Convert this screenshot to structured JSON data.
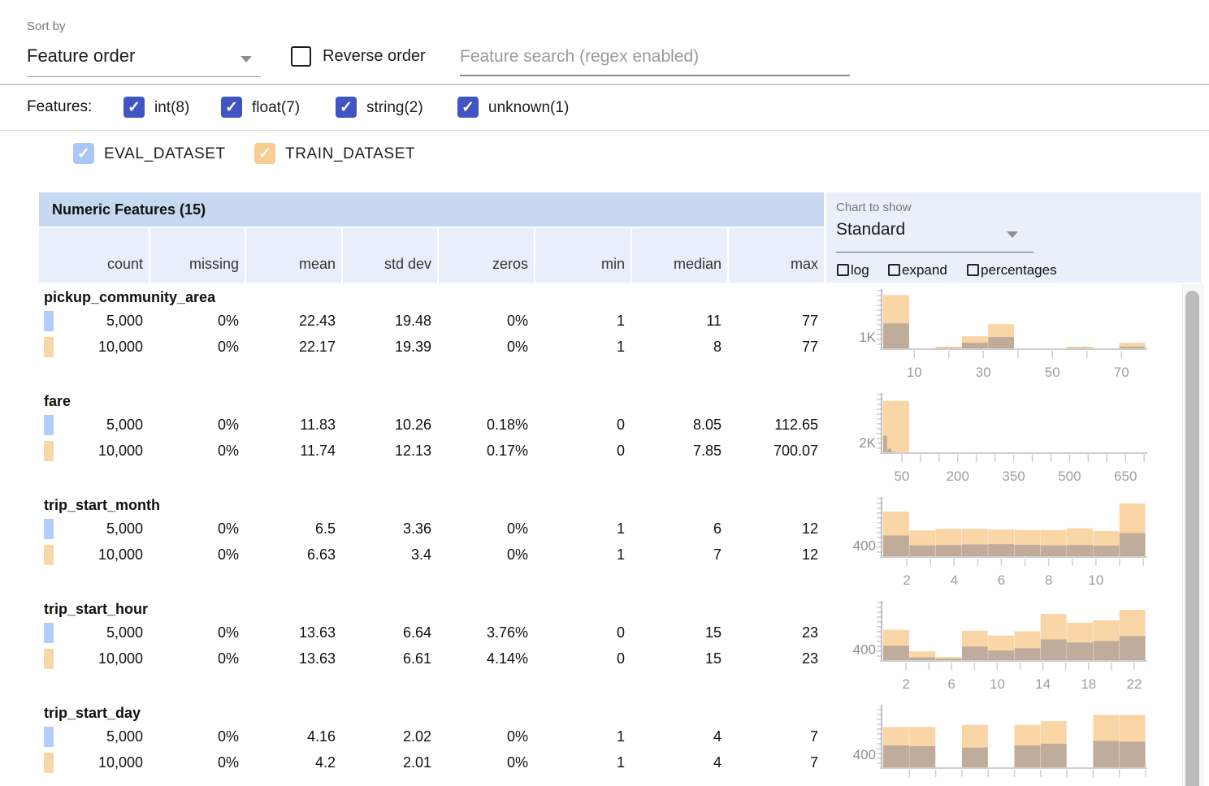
{
  "toolbar": {
    "sort_by_label": "Sort by",
    "sort_value": "Feature order",
    "reverse_label": "Reverse order",
    "search_placeholder": "Feature search (regex enabled)"
  },
  "features_bar": {
    "label": "Features:",
    "filters": [
      {
        "label": "int(8)",
        "checked": true
      },
      {
        "label": "float(7)",
        "checked": true
      },
      {
        "label": "string(2)",
        "checked": true
      },
      {
        "label": "unknown(1)",
        "checked": true
      }
    ]
  },
  "datasets": [
    {
      "label": "EVAL_DATASET",
      "checkbox_color": "#a9c7f7",
      "marker_color": "#b3ccf9",
      "count": "5,000"
    },
    {
      "label": "TRAIN_DATASET",
      "checkbox_color": "#f9cd92",
      "marker_color": "#f8d6a6",
      "count": "10,000"
    }
  ],
  "table": {
    "title": "Numeric Features (15)",
    "columns": [
      "count",
      "missing",
      "mean",
      "std dev",
      "zeros",
      "min",
      "median",
      "max"
    ],
    "features": [
      {
        "name": "pickup_community_area",
        "eval": [
          "5,000",
          "0%",
          "22.43",
          "19.48",
          "0%",
          "1",
          "11",
          "77"
        ],
        "train": [
          "10,000",
          "0%",
          "22.17",
          "19.39",
          "0%",
          "1",
          "8",
          "77"
        ]
      },
      {
        "name": "fare",
        "eval": [
          "5,000",
          "0%",
          "11.83",
          "10.26",
          "0.18%",
          "0",
          "8.05",
          "112.65"
        ],
        "train": [
          "10,000",
          "0%",
          "11.74",
          "12.13",
          "0.17%",
          "0",
          "7.85",
          "700.07"
        ]
      },
      {
        "name": "trip_start_month",
        "eval": [
          "5,000",
          "0%",
          "6.5",
          "3.36",
          "0%",
          "1",
          "6",
          "12"
        ],
        "train": [
          "10,000",
          "0%",
          "6.63",
          "3.4",
          "0%",
          "1",
          "7",
          "12"
        ]
      },
      {
        "name": "trip_start_hour",
        "eval": [
          "5,000",
          "0%",
          "13.63",
          "6.64",
          "3.76%",
          "0",
          "15",
          "23"
        ],
        "train": [
          "10,000",
          "0%",
          "13.63",
          "6.61",
          "4.14%",
          "0",
          "15",
          "23"
        ]
      },
      {
        "name": "trip_start_day",
        "eval": [
          "5,000",
          "0%",
          "4.16",
          "2.02",
          "0%",
          "1",
          "4",
          "7"
        ],
        "train": [
          "10,000",
          "0%",
          "4.2",
          "2.01",
          "0%",
          "1",
          "4",
          "7"
        ]
      }
    ]
  },
  "chart_controls": {
    "label": "Chart to show",
    "selected": "Standard",
    "options": [
      "log",
      "expand",
      "percentages"
    ]
  },
  "chart_data": [
    {
      "feature": "pickup_community_area",
      "type": "histogram",
      "y_tick_label": "1K",
      "y_tick_value": 1000,
      "y_max": 4700,
      "x_min": 1,
      "x_max": 77,
      "x_tick_start": 10,
      "x_tick_step": 10,
      "x_tick_labels": [
        10,
        30,
        50,
        70
      ],
      "series": [
        {
          "name": "TRAIN_DATASET",
          "x0": 1,
          "bin_width": 7.6,
          "values": [
            4470,
            70,
            200,
            1070,
            2070,
            70,
            70,
            200,
            70,
            530
          ]
        },
        {
          "name": "EVAL_DATASET",
          "x0": 1,
          "bin_width": 7.6,
          "values": [
            2130,
            35,
            100,
            530,
            1000,
            35,
            35,
            100,
            35,
            210
          ]
        }
      ]
    },
    {
      "feature": "fare",
      "type": "histogram",
      "y_tick_label": "2K",
      "y_tick_value": 2000,
      "y_max": 10800,
      "x_min": 0,
      "x_max": 704,
      "x_tick_start": 50,
      "x_tick_step": 50,
      "x_tick_labels": [
        50,
        200,
        350,
        500,
        650
      ],
      "series": [
        {
          "name": "TRAIN_DATASET",
          "x0": 0,
          "bin_width": 70.4,
          "values": [
            9900,
            60,
            15,
            8,
            5,
            3,
            2,
            1,
            1,
            2
          ]
        },
        {
          "name": "EVAL_DATASET",
          "x0": 0,
          "bin_width": 11.3,
          "values": [
            3300,
            820,
            260,
            110,
            60,
            35,
            20,
            12,
            8,
            5
          ]
        }
      ]
    },
    {
      "feature": "trip_start_month",
      "type": "histogram",
      "y_tick_label": "400",
      "y_tick_value": 400,
      "y_max": 1900,
      "x_min": 1,
      "x_max": 12.1,
      "x_tick_start": 2,
      "x_tick_step": 1,
      "x_tick_labels": [
        2,
        4,
        6,
        8,
        10
      ],
      "series": [
        {
          "name": "TRAIN_DATASET",
          "x0": 1,
          "bin_width": 1.11,
          "values": [
            1520,
            890,
            940,
            940,
            920,
            900,
            900,
            960,
            870,
            1790
          ]
        },
        {
          "name": "EVAL_DATASET",
          "x0": 1,
          "bin_width": 1.11,
          "values": [
            720,
            390,
            400,
            420,
            430,
            410,
            390,
            400,
            380,
            800
          ]
        }
      ]
    },
    {
      "feature": "trip_start_hour",
      "type": "histogram",
      "y_tick_label": "400",
      "y_tick_value": 400,
      "y_max": 1900,
      "x_min": 0,
      "x_max": 23,
      "x_tick_start": 2,
      "x_tick_step": 2,
      "x_tick_labels": [
        2,
        6,
        10,
        14,
        18,
        22
      ],
      "series": [
        {
          "name": "TRAIN_DATASET",
          "x0": 0,
          "bin_width": 2.3,
          "values": [
            1040,
            320,
            130,
            1010,
            850,
            990,
            1570,
            1280,
            1360,
            1710
          ]
        },
        {
          "name": "EVAL_DATASET",
          "x0": 0,
          "bin_width": 2.3,
          "values": [
            510,
            120,
            80,
            480,
            350,
            425,
            720,
            615,
            665,
            830
          ]
        }
      ]
    },
    {
      "feature": "trip_start_day",
      "type": "histogram",
      "y_tick_label": "400",
      "y_tick_value": 400,
      "y_max": 1750,
      "x_min": 1,
      "x_max": 7,
      "x_tick_start": 1.6,
      "x_tick_step": 0.6,
      "x_tick_labels": [],
      "series": [
        {
          "name": "TRAIN_DATASET",
          "x0": 1,
          "bin_width": 0.6,
          "values": [
            1200,
            1200,
            0,
            1260,
            0,
            1260,
            1370,
            0,
            1550,
            1550
          ]
        },
        {
          "name": "EVAL_DATASET",
          "x0": 1,
          "bin_width": 0.6,
          "values": [
            660,
            640,
            0,
            600,
            0,
            660,
            710,
            0,
            790,
            770
          ]
        }
      ]
    }
  ],
  "colors": {
    "filter_checkbox": "#4154c4",
    "eval_checkbox": "#a9c7f7",
    "train_checkbox": "#f9cd92",
    "eval_marker": "#b3ccf9",
    "train_marker": "#f8d6a6",
    "table_header_bg": "#c6d9f0",
    "column_header_bg": "#e9effa",
    "hist_train_bar": "#f9ce97",
    "hist_overlap": "#c3aca0"
  }
}
